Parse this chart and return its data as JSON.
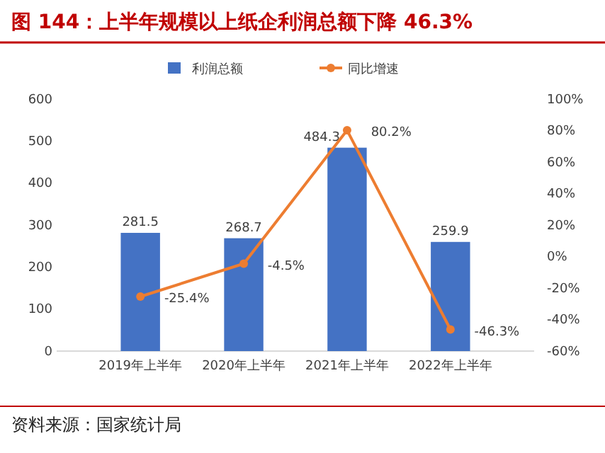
{
  "chart_data": {
    "type": "bar",
    "title": "图 144：上半年规模以上纸企利润总额下降 46.3%",
    "categories": [
      "2019年上半年",
      "2020年上半年",
      "2021年上半年",
      "2022年上半年"
    ],
    "series": [
      {
        "name": "利润总额",
        "color": "#4472c4",
        "values": [
          281.5,
          268.7,
          484.3,
          259.9
        ],
        "value_labels": [
          "281.5",
          "268.7",
          "484.3",
          "259.9"
        ]
      },
      {
        "name": "同比增速",
        "type": "line",
        "axis": "y2",
        "color": "#ed7d31",
        "marker": "circle",
        "values": [
          -25.4,
          -4.5,
          80.2,
          -46.3
        ],
        "value_labels": [
          "-25.4%",
          "-4.5%",
          "80.2%",
          "-46.3%"
        ]
      }
    ],
    "ylim": [
      0,
      600
    ],
    "yticks": [
      0,
      100,
      200,
      300,
      400,
      500,
      600
    ],
    "y2lim": [
      -60,
      100
    ],
    "y2ticks": [
      {
        "value": -60,
        "label": "-60%"
      },
      {
        "value": -40,
        "label": "-40%"
      },
      {
        "value": -20,
        "label": "-20%"
      },
      {
        "value": 0,
        "label": "0%"
      },
      {
        "value": 20,
        "label": "20%"
      },
      {
        "value": 40,
        "label": "40%"
      },
      {
        "value": 60,
        "label": "60%"
      },
      {
        "value": 80,
        "label": "80%"
      },
      {
        "value": 100,
        "label": "100%"
      }
    ],
    "legend": "top",
    "annotations": [
      "资料来源：国家统计局"
    ]
  }
}
